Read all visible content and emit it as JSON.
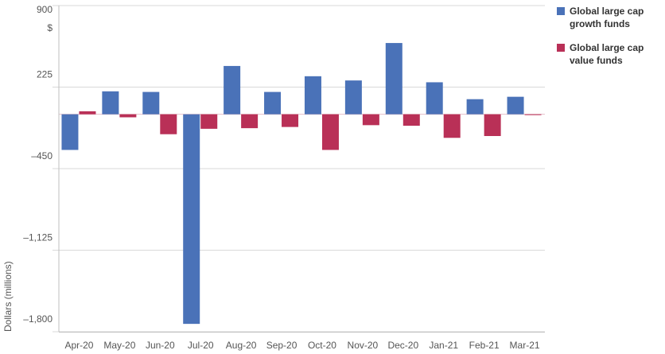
{
  "chart_data": {
    "type": "bar",
    "ylabel": "Dollars (millions)",
    "y_unit_label": "$",
    "ylim": [
      -1800,
      900
    ],
    "yticks": [
      900,
      225,
      -450,
      -1125,
      -1800
    ],
    "ytick_labels": [
      "900",
      "225",
      "–450",
      "–1,125",
      "–1,800"
    ],
    "categories": [
      "Apr-20",
      "May-20",
      "Jun-20",
      "Jul-20",
      "Aug-20",
      "Sep-20",
      "Oct-20",
      "Nov-20",
      "Dec-20",
      "Jan-21",
      "Feb-21",
      "Mar-21"
    ],
    "series": [
      {
        "name": "Global large cap growth funds",
        "color": "#4a72b8",
        "values": [
          -295,
          190,
          185,
          -1735,
          400,
          185,
          315,
          280,
          590,
          265,
          125,
          145
        ]
      },
      {
        "name": "Global large cap value funds",
        "color": "#b93057",
        "values": [
          25,
          -25,
          -165,
          -120,
          -115,
          -105,
          -295,
          -90,
          -95,
          -195,
          -180,
          -5
        ]
      }
    ],
    "grid": true,
    "legend_position": "right"
  },
  "legend": {
    "items": [
      {
        "label": "Global large cap growth funds",
        "color": "#4a72b8"
      },
      {
        "label": "Global large cap value funds",
        "color": "#b93057"
      }
    ]
  }
}
